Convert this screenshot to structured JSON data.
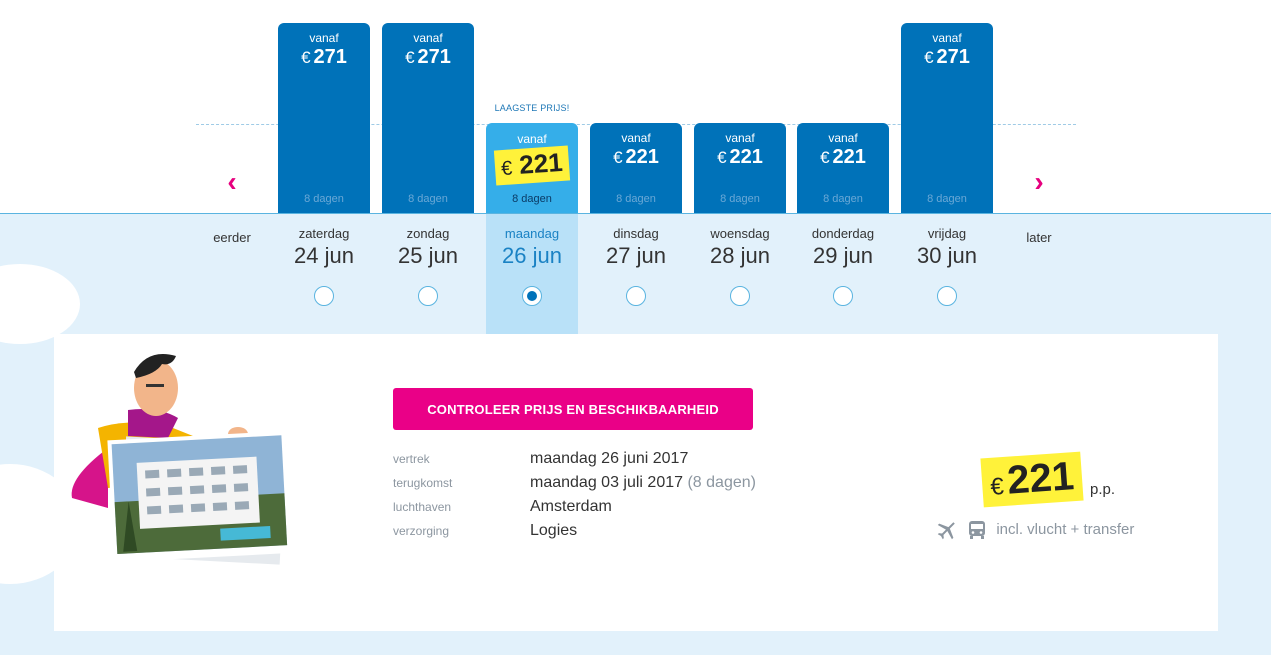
{
  "header": {
    "lowest_label": "LAAGSTE PRIJS!"
  },
  "nav": {
    "earlier": "eerder",
    "later": "later",
    "prev_icon": "chevron-left-icon",
    "next_icon": "chevron-right-icon"
  },
  "days": [
    {
      "vanaf": "vanaf",
      "currency": "€",
      "price": "271",
      "duration": "8 dagen",
      "weekday": "zaterdag",
      "date": "24 jun",
      "selected": false
    },
    {
      "vanaf": "vanaf",
      "currency": "€",
      "price": "271",
      "duration": "8 dagen",
      "weekday": "zondag",
      "date": "25 jun",
      "selected": false
    },
    {
      "vanaf": "vanaf",
      "currency": "€",
      "price": "221",
      "duration": "8 dagen",
      "weekday": "maandag",
      "date": "26 jun",
      "selected": true
    },
    {
      "vanaf": "vanaf",
      "currency": "€",
      "price": "221",
      "duration": "8 dagen",
      "weekday": "dinsdag",
      "date": "27 jun",
      "selected": false
    },
    {
      "vanaf": "vanaf",
      "currency": "€",
      "price": "221",
      "duration": "8 dagen",
      "weekday": "woensdag",
      "date": "28 jun",
      "selected": false
    },
    {
      "vanaf": "vanaf",
      "currency": "€",
      "price": "221",
      "duration": "8 dagen",
      "weekday": "donderdag",
      "date": "29 jun",
      "selected": false
    },
    {
      "vanaf": "vanaf",
      "currency": "€",
      "price": "271",
      "duration": "8 dagen",
      "weekday": "vrijdag",
      "date": "30 jun",
      "selected": false
    }
  ],
  "details": {
    "cta": "CONTROLEER PRIJS EN BESCHIKBAARHEID",
    "rows": [
      {
        "key": "vertrek",
        "value": "maandag 26 juni 2017",
        "sub": ""
      },
      {
        "key": "terugkomst",
        "value": "maandag 03 juli 2017",
        "sub": "(8 dagen)"
      },
      {
        "key": "luchthaven",
        "value": "Amsterdam",
        "sub": ""
      },
      {
        "key": "verzorging",
        "value": "Logies",
        "sub": ""
      }
    ]
  },
  "summary": {
    "currency": "€",
    "price": "221",
    "per": "p.p.",
    "incl": "incl. vlucht + transfer",
    "icons": [
      "plane-icon",
      "bus-icon"
    ]
  },
  "colors": {
    "brand_blue": "#0072b9",
    "selected_blue": "#35aee9",
    "accent_pink": "#ea0087",
    "highlight_yellow": "#fff23a"
  }
}
